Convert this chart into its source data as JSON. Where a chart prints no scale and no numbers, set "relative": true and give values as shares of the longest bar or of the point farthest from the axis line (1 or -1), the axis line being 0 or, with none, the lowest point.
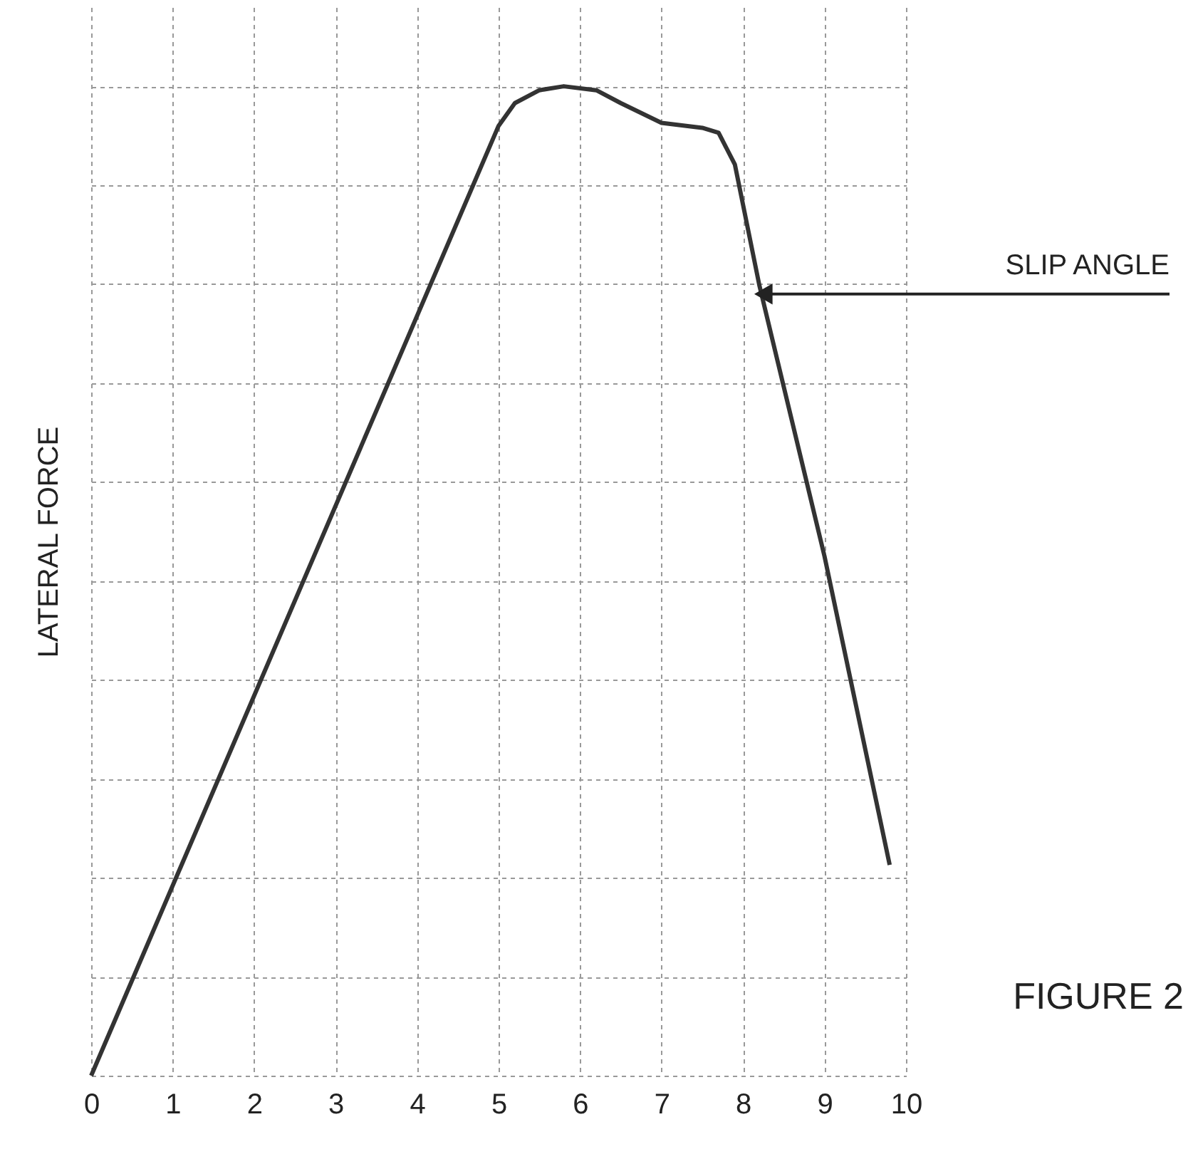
{
  "chart_data": {
    "type": "line",
    "relative": true,
    "ylabel": "LATERAL FORCE",
    "x": [
      0,
      5,
      5.2,
      5.5,
      5.8,
      6.2,
      6.5,
      7,
      7.5,
      7.7,
      7.9,
      8.2,
      9,
      9.8
    ],
    "series": [
      {
        "color": "#333333",
        "values": [
          0,
          0.96,
          0.983,
          0.996,
          1,
          0.996,
          0.983,
          0.963,
          0.958,
          0.953,
          0.921,
          0.799,
          0.525,
          0.213
        ]
      }
    ],
    "xlim": [
      0,
      10
    ],
    "xticks": [
      0,
      1,
      2,
      3,
      4,
      5,
      6,
      7,
      8,
      9,
      10
    ],
    "grid": true,
    "marker": "none",
    "line_style": "solid",
    "annotations": [
      {
        "text": "SLIP ANGLE",
        "x": 8.25,
        "y": 0.79
      },
      "FIGURE 2"
    ]
  }
}
